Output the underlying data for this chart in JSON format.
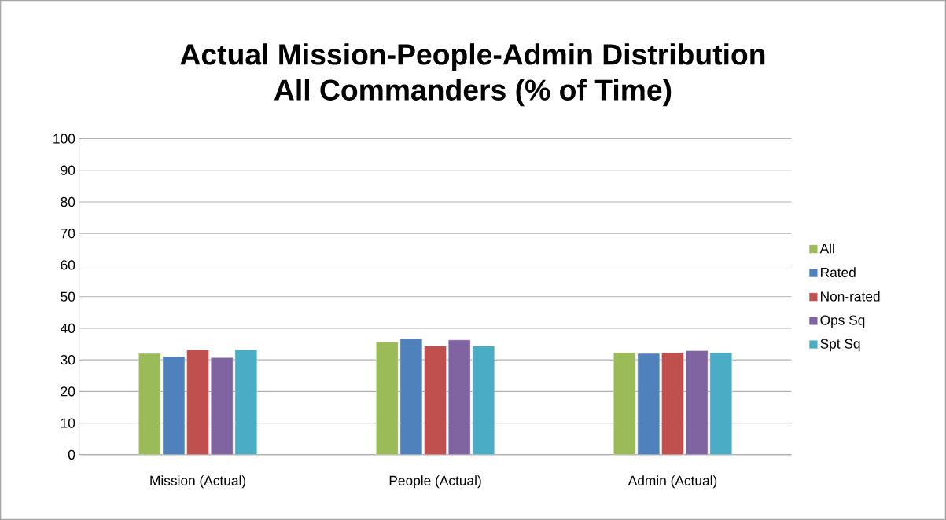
{
  "chart_data": {
    "type": "bar",
    "title": "Actual Mission-People-Admin Distribution\nAll Commanders (% of Time)",
    "categories": [
      "Mission (Actual)",
      "People (Actual)",
      "Admin (Actual)"
    ],
    "series": [
      {
        "name": "All",
        "color": "#9bbb59",
        "values": [
          32.0,
          35.6,
          32.3
        ]
      },
      {
        "name": "Rated",
        "color": "#4f81bd",
        "values": [
          31.0,
          36.6,
          32.0
        ]
      },
      {
        "name": "Non-rated",
        "color": "#c0504d",
        "values": [
          33.2,
          34.4,
          32.3
        ]
      },
      {
        "name": "Ops Sq",
        "color": "#8064a2",
        "values": [
          30.7,
          36.3,
          32.9
        ]
      },
      {
        "name": "Spt Sq",
        "color": "#4bacc6",
        "values": [
          33.2,
          34.4,
          32.3
        ]
      }
    ],
    "ylim": [
      0,
      100
    ],
    "yticks": [
      0,
      10,
      20,
      30,
      40,
      50,
      60,
      70,
      80,
      90,
      100
    ],
    "grid": "y",
    "legend": "right"
  }
}
